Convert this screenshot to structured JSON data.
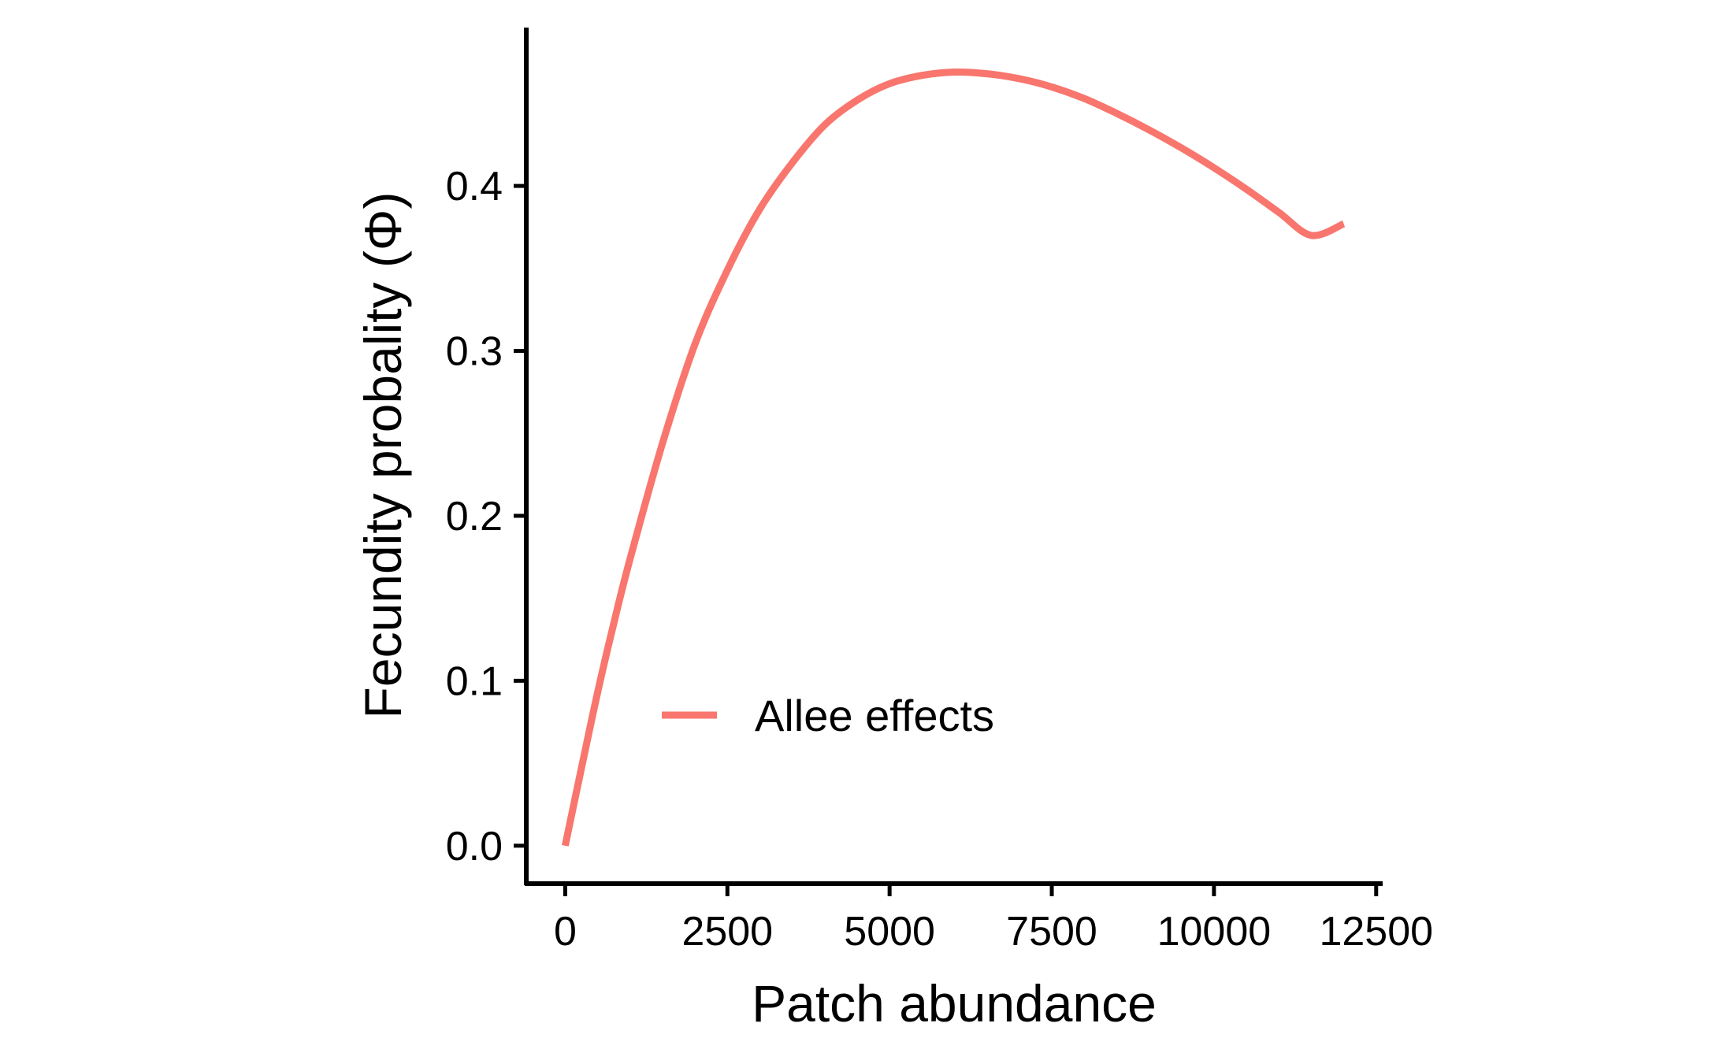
{
  "chart_data": {
    "type": "line",
    "title": "",
    "xlabel": "Patch abundance",
    "ylabel": "Fecundity probality (Φ)",
    "xlim": [
      -600,
      12600
    ],
    "ylim": [
      -0.023,
      0.496
    ],
    "xticks": [
      0,
      2500,
      5000,
      7500,
      10000,
      12500
    ],
    "xtick_labels": [
      "0",
      "2500",
      "5000",
      "7500",
      "10000",
      "12500"
    ],
    "yticks": [
      0.0,
      0.1,
      0.2,
      0.3,
      0.4
    ],
    "ytick_labels": [
      "0.0",
      "0.1",
      "0.2",
      "0.3",
      "0.4"
    ],
    "grid": false,
    "legend_position": "inside-bottom-left",
    "series": [
      {
        "name": "Allee effects",
        "color": "#F8766D",
        "x": [
          0,
          250,
          500,
          750,
          1000,
          1500,
          2000,
          2500,
          3000,
          3500,
          4000,
          4500,
          5000,
          5500,
          6000,
          6500,
          7000,
          7500,
          8000,
          8500,
          9000,
          9500,
          10000,
          10500,
          11000,
          11500,
          12000
        ],
        "y": [
          0.0,
          0.047,
          0.093,
          0.135,
          0.174,
          0.244,
          0.304,
          0.349,
          0.386,
          0.414,
          0.437,
          0.452,
          0.462,
          0.467,
          0.469,
          0.468,
          0.465,
          0.46,
          0.453,
          0.444,
          0.434,
          0.423,
          0.411,
          0.398,
          0.384,
          0.37,
          0.377
        ]
      }
    ]
  }
}
